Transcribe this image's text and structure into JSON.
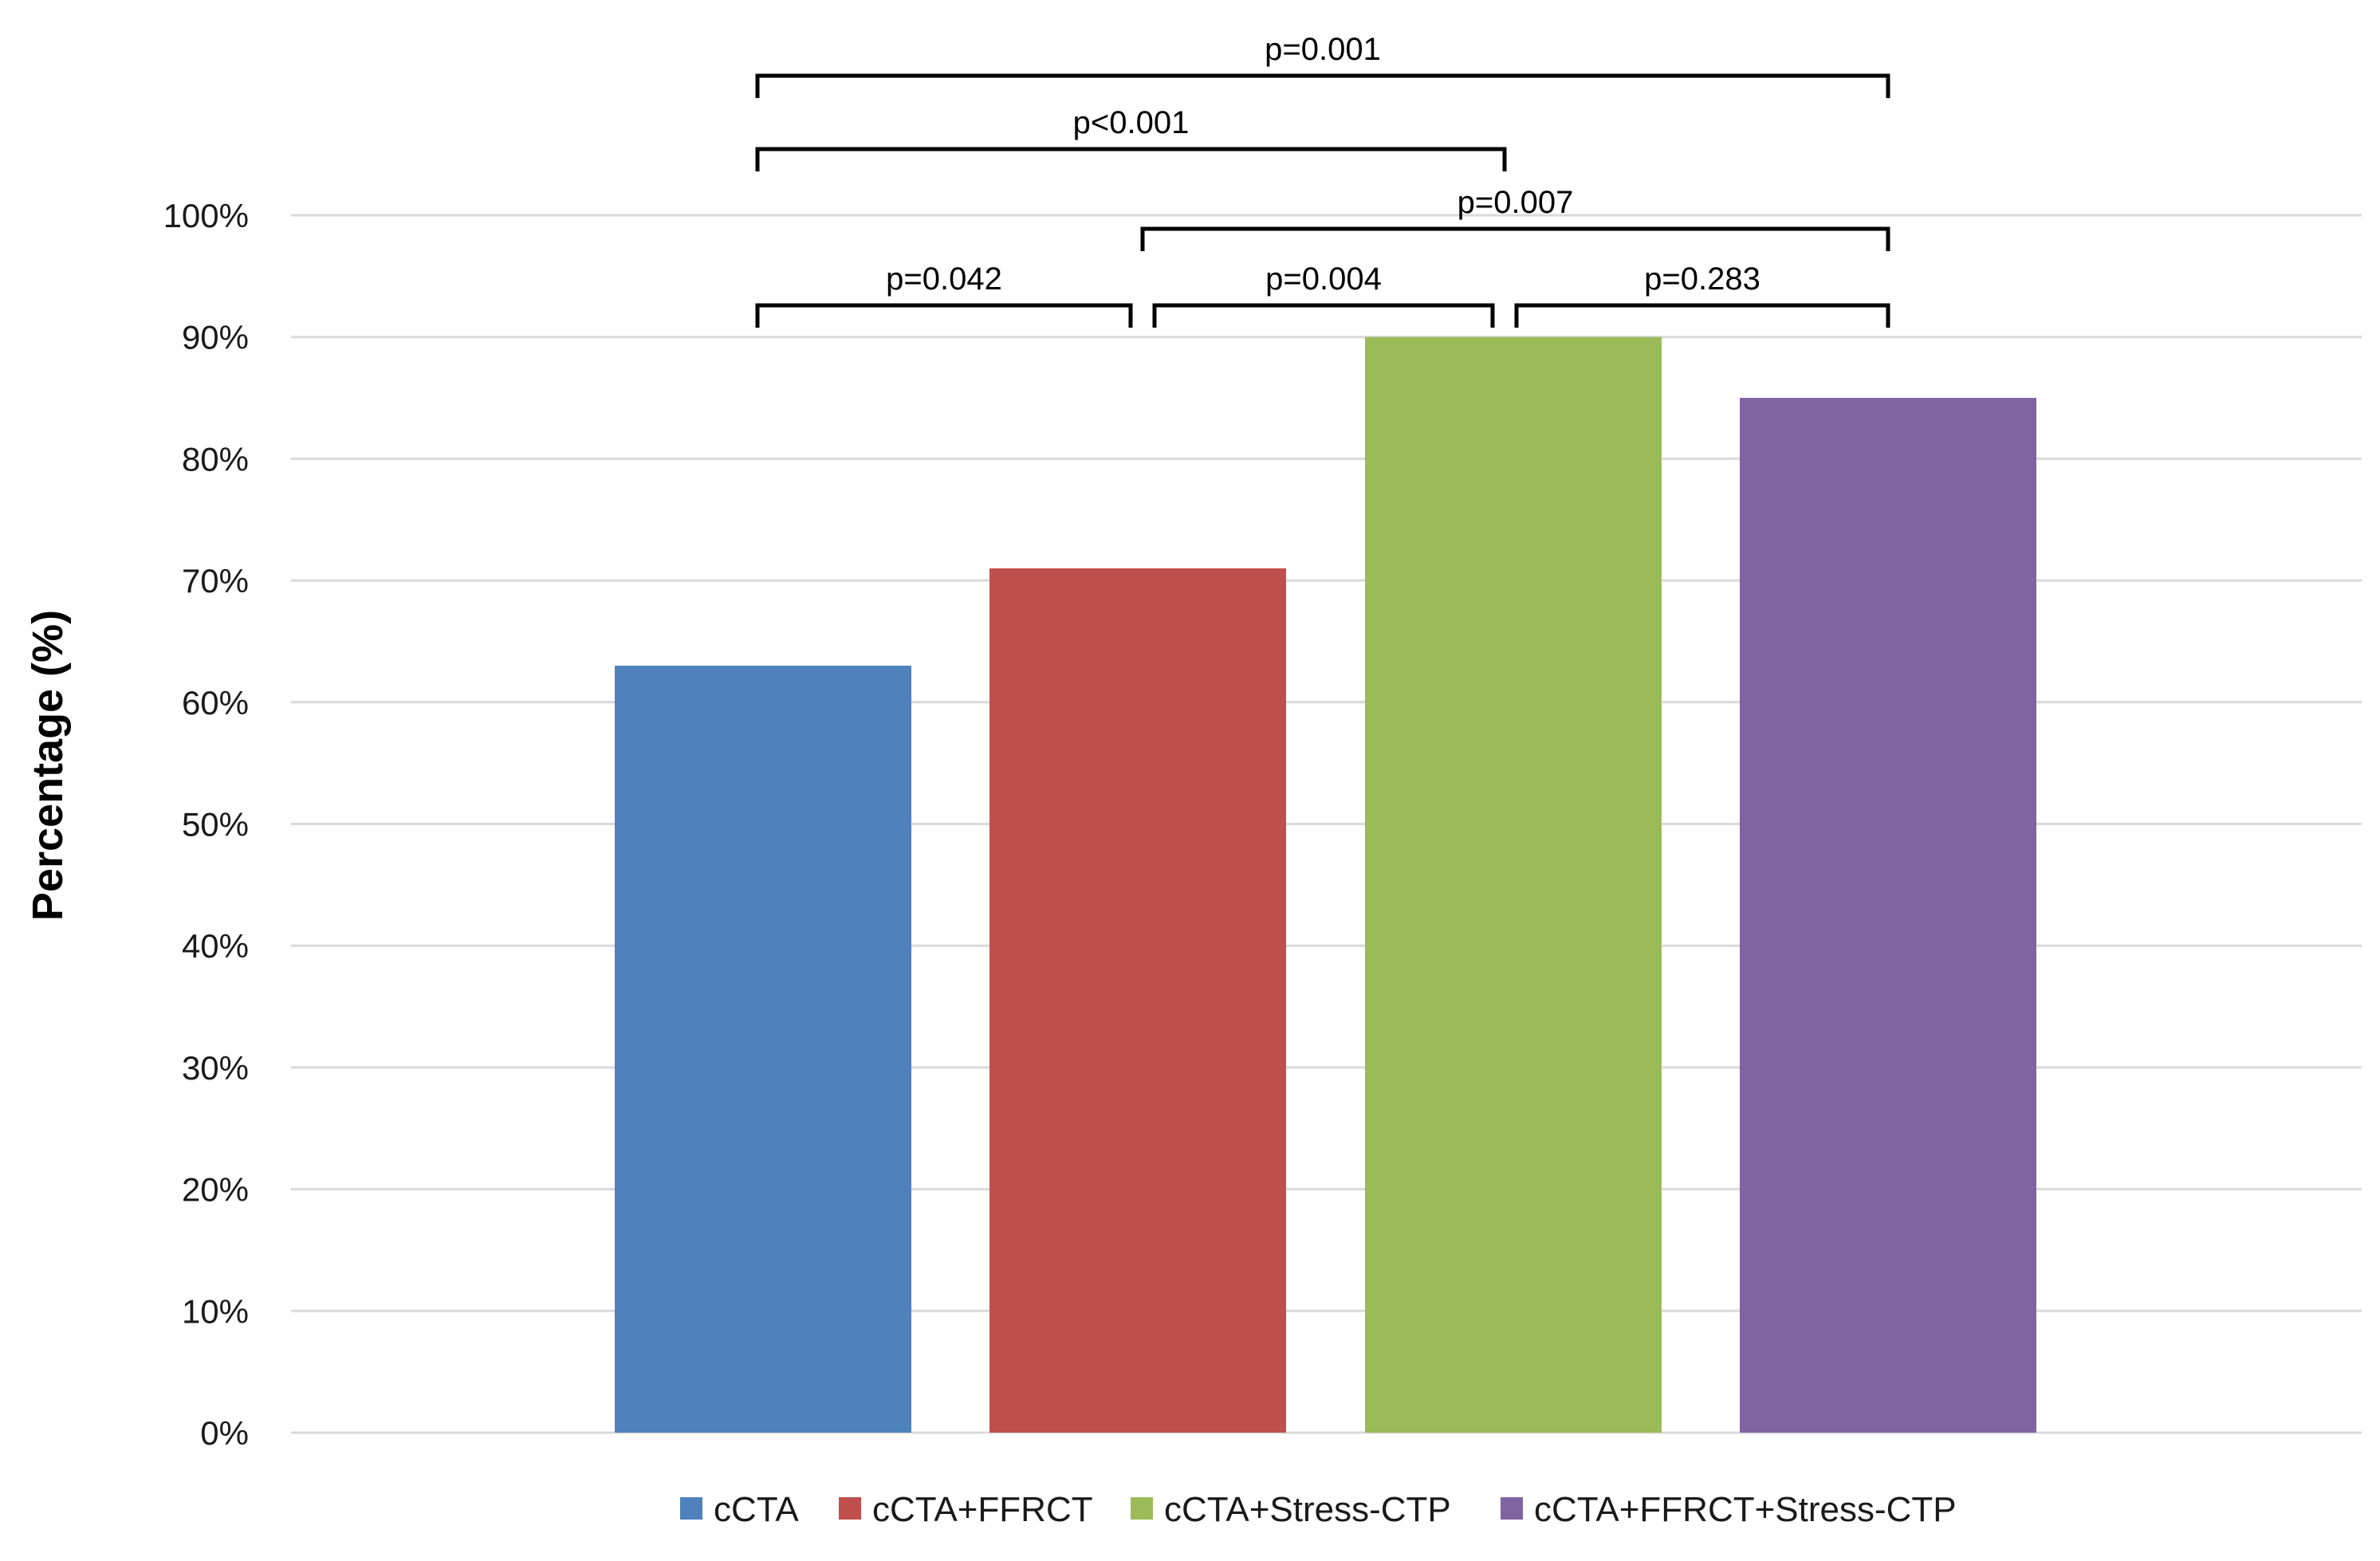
{
  "chart_data": {
    "type": "bar",
    "title": "",
    "xlabel": "",
    "ylabel": "Percentage (%)",
    "ylim": [
      0,
      100
    ],
    "y_ticks": [
      "0%",
      "10%",
      "20%",
      "30%",
      "40%",
      "50%",
      "60%",
      "70%",
      "80%",
      "90%",
      "100%"
    ],
    "grid": true,
    "legend_position": "bottom",
    "categories": [
      "cCTA",
      "cCTA+FFRCT",
      "cCTA+Stress-CTP",
      "cCTA+FFRCT+Stress-CTP"
    ],
    "values": [
      63,
      71,
      90,
      85
    ],
    "colors": [
      "#4f81bd",
      "#c0504d",
      "#9bbb59",
      "#8064a2"
    ],
    "comparisons": [
      {
        "from": 0,
        "to": 3,
        "label": "p=0.001"
      },
      {
        "from": 0,
        "to": 2,
        "label": "p<0.001"
      },
      {
        "from": 1,
        "to": 3,
        "label": "p=0.007"
      },
      {
        "from": 0,
        "to": 1,
        "label": "p=0.042"
      },
      {
        "from": 1,
        "to": 2,
        "label": "p=0.004"
      },
      {
        "from": 2,
        "to": 3,
        "label": "p=0.283"
      }
    ]
  }
}
